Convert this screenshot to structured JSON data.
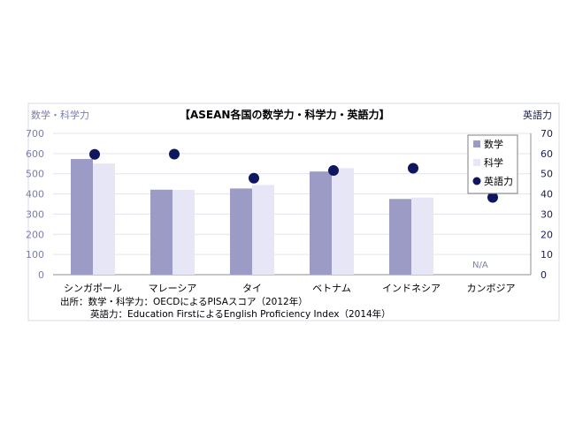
{
  "chart_data": {
    "type": "bar",
    "title": "【ASEAN各国の数学力・科学力・英語力】",
    "left_axis_label": "数学・科学力",
    "right_axis_label": "英語力",
    "left_ylim": [
      0,
      700
    ],
    "left_ticks": [
      0,
      100,
      200,
      300,
      400,
      500,
      600,
      700
    ],
    "right_ylim": [
      0,
      70
    ],
    "right_ticks": [
      0,
      10,
      20,
      30,
      40,
      50,
      60,
      70
    ],
    "grid": true,
    "legend_position": "top-right",
    "categories": [
      "シンガポール",
      "マレーシア",
      "タイ",
      "ベトナム",
      "インドネシア",
      "カンボジア"
    ],
    "series": [
      {
        "name": "数学",
        "kind": "bar",
        "axis": "left",
        "color": "#9b9bc6",
        "values": [
          573,
          421,
          427,
          511,
          375,
          null
        ]
      },
      {
        "name": "科学",
        "kind": "bar",
        "axis": "left",
        "color": "#e6e6f7",
        "values": [
          551,
          420,
          444,
          528,
          382,
          null
        ]
      },
      {
        "name": "英語力",
        "kind": "marker",
        "axis": "right",
        "color": "#0f1660",
        "values": [
          59.6,
          59.7,
          47.8,
          51.6,
          52.7,
          38.3
        ]
      }
    ],
    "annotations": {
      "na_label": "N/A"
    },
    "source_lines": [
      "出所：数学・科学力：OECDによるPISAスコア（2012年）",
      "英語力：Education FirstによるEnglish Proficiency Index（2014年）"
    ]
  }
}
